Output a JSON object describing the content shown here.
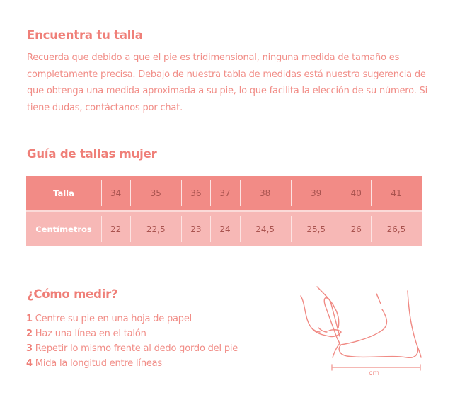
{
  "find_size": {
    "title": "Encuentra tu talla",
    "text": "Recuerda que debido a que el pie es tridimensional, ninguna medida de tamaño es completamente precisa. Debajo de nuestra tabla de medidas está nuestra sugerencia de que obtenga una medida aproximada a su pie, lo que facilita la elección de su número. Si tiene dudas, contáctanos por chat."
  },
  "size_guide": {
    "title": "Guía de tallas mujer",
    "rows": [
      {
        "label": "Talla",
        "values": [
          "34",
          "35",
          "36",
          "37",
          "38",
          "39",
          "40",
          "41"
        ]
      },
      {
        "label": "Centímetros",
        "values": [
          "22",
          "22,5",
          "23",
          "24",
          "24,5",
          "25,5",
          "26",
          "26,5"
        ]
      }
    ]
  },
  "how_to": {
    "title": "¿Cómo medir?",
    "steps": [
      {
        "num": "1",
        "text": "Centre su pie en una hoja de papel"
      },
      {
        "num": "2",
        "text": "Haz una línea en el talón"
      },
      {
        "num": "3",
        "text": "Repetir lo mismo frente al dedo gordo del pie"
      },
      {
        "num": "4",
        "text": "Mida la longitud entre líneas"
      }
    ],
    "illustration_unit": "cm"
  },
  "colors": {
    "accent": "#ef7f78",
    "header_row": "#f28b86",
    "body_row": "#f7b8b6"
  }
}
